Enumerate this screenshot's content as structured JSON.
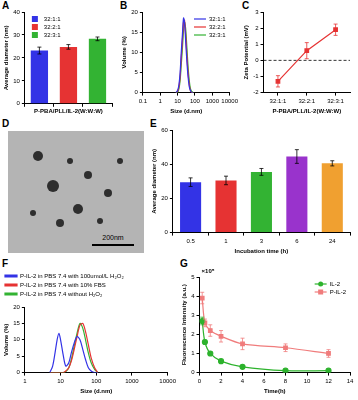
{
  "chart_data": [
    {
      "panel": "A",
      "type": "bar",
      "categories": [
        "32:1:1",
        "32:2:1",
        "32:3:1"
      ],
      "values": [
        23.2,
        24.8,
        28.3
      ],
      "errors": [
        1.5,
        1.0,
        0.8
      ],
      "colors": [
        "#3333e6",
        "#e63333",
        "#33b333"
      ],
      "x_label": "P-PBA/PLL/IL-2(W:W:W)",
      "y_label": "Average diameter (nm)",
      "ylim": [
        0,
        40
      ],
      "yticks": [
        0,
        10,
        20,
        30,
        40
      ],
      "grid": false,
      "legend": "top-left",
      "tick_labels": "y"
    },
    {
      "panel": "B",
      "type": "line",
      "x": [
        8,
        10,
        12,
        14,
        16,
        19,
        22,
        25,
        29,
        34,
        40,
        47,
        55,
        65,
        80
      ],
      "series": [
        {
          "name": "32:1:1",
          "color": "#3333e6",
          "values": [
            0,
            0.5,
            2,
            5,
            9.5,
            14.5,
            18.5,
            17.5,
            13,
            8,
            4,
            1.5,
            0.5,
            0,
            0
          ]
        },
        {
          "name": "32:2:1",
          "color": "#e63333",
          "values": [
            0,
            0.3,
            1.5,
            4,
            8,
            13,
            17.5,
            18,
            14.5,
            9.5,
            5,
            2,
            0.5,
            0,
            0
          ]
        },
        {
          "name": "32:3:1",
          "color": "#33b333",
          "values": [
            0,
            0,
            1,
            3,
            6.5,
            11,
            15.5,
            17.5,
            16,
            11.5,
            6.5,
            3,
            1,
            0.3,
            0
          ]
        }
      ],
      "log": "x",
      "x_label": "Size (d.nm)",
      "y_label": "Volume (%)",
      "xlim": [
        0.1,
        10000
      ],
      "xticks": [
        0.1,
        1,
        10,
        100,
        1000,
        10000
      ],
      "ylim": [
        0,
        20
      ],
      "yticks": [
        0,
        5,
        10,
        15,
        20
      ],
      "grid": false,
      "legend": "top-right",
      "marker": "none"
    },
    {
      "panel": "C",
      "type": "line",
      "categories": [
        "32:1:1",
        "32:2:1",
        "32:3:1"
      ],
      "values": [
        -1.3,
        0.6,
        1.9
      ],
      "errors": [
        0.35,
        0.5,
        0.35
      ],
      "color": "#e63333",
      "marker": "square",
      "x_label": "P-PBA/PLL/IL-2(W:W:W)",
      "y_label": "Zeta Potential (mV)",
      "ylim": [
        -2,
        3
      ],
      "yticks": [
        -2,
        -1,
        0,
        1,
        2,
        3
      ],
      "hline": 0,
      "grid": false
    },
    {
      "panel": "E",
      "type": "bar",
      "categories": [
        "0.5",
        "1",
        "3",
        "6",
        "24"
      ],
      "values": [
        29.5,
        30.5,
        35.5,
        44.5,
        40.5
      ],
      "errors": [
        2.5,
        2.5,
        2,
        4,
        1.5
      ],
      "colors": [
        "#3333e6",
        "#e63333",
        "#33b333",
        "#9933cc",
        "#f0a030"
      ],
      "x_label": "Incubation time (h)",
      "y_label": "Average diameter (nm)",
      "ylim": [
        0,
        60
      ],
      "yticks": [
        0,
        20,
        40,
        60
      ],
      "grid": false
    },
    {
      "panel": "F",
      "type": "line",
      "x": [
        5,
        6,
        7,
        8,
        9,
        10,
        12,
        14,
        17,
        20,
        24,
        29,
        35,
        42,
        50,
        60,
        72,
        90,
        110
      ],
      "series": [
        {
          "name": "P-IL-2 in PBS 7.4 with 100umol/L H₂O₂",
          "color": "#3333e6",
          "values": [
            0,
            2,
            6,
            10,
            12,
            10,
            5,
            2,
            3,
            6,
            9,
            11,
            10,
            7,
            4,
            1.5,
            0.5,
            0,
            0
          ]
        },
        {
          "name": "P-IL-2 in PBS 7.4 with 10% FBS",
          "color": "#e63333",
          "values": [
            0,
            0,
            0,
            0,
            0,
            0,
            0,
            0.5,
            1.5,
            3.5,
            7,
            11,
            14.5,
            15,
            12.5,
            8.5,
            4.5,
            1.5,
            0
          ]
        },
        {
          "name": "P-IL-2 in PBS 7.4 without H₂O₂",
          "color": "#33b333",
          "values": [
            0,
            0,
            0,
            0,
            0,
            0,
            0,
            0.3,
            1.5,
            4,
            8,
            12,
            15,
            13.5,
            10,
            6,
            3,
            1,
            0
          ]
        }
      ],
      "log": "x",
      "x_label": "Size (d.nm)",
      "y_label": "Volume (%)",
      "xlim": [
        1,
        10000
      ],
      "xticks": [
        1,
        10,
        100,
        1000,
        10000
      ],
      "ylim": [
        0,
        20
      ],
      "yticks": [
        0,
        5,
        10,
        15,
        20
      ],
      "grid": false,
      "legend": "top",
      "marker": "none"
    },
    {
      "panel": "G",
      "type": "line",
      "x": [
        0.25,
        0.5,
        1,
        2,
        4,
        8,
        12
      ],
      "series": [
        {
          "name": "IL-2",
          "color": "#2db32d",
          "marker": "circle",
          "values": [
            2.7,
            1.6,
            1.0,
            0.6,
            0.3,
            0.1,
            0.1
          ],
          "errors": [
            0.2,
            0.1,
            0.1,
            0.05,
            0.05,
            0.05,
            0.05
          ]
        },
        {
          "name": "P-IL-2",
          "color": "#f07c7c",
          "marker": "square",
          "values": [
            3.9,
            2.6,
            2.2,
            1.9,
            1.5,
            1.3,
            1.0
          ],
          "errors": [
            0.3,
            0.2,
            0.3,
            0.3,
            0.3,
            0.2,
            0.2
          ]
        }
      ],
      "x_label": "Time(h)",
      "y_label": "Fluorescence Intensity (a.u.)",
      "annotations": [
        "×10⁵"
      ],
      "xlim": [
        0,
        14
      ],
      "xticks": [
        0,
        2,
        4,
        6,
        8,
        10,
        12,
        14
      ],
      "ylim": [
        0,
        5
      ],
      "yticks": [
        0,
        1,
        2,
        3,
        4,
        5
      ],
      "grid": false,
      "legend": "top-right"
    }
  ],
  "image": {
    "panel": "D",
    "scale_bar": "200nm"
  }
}
